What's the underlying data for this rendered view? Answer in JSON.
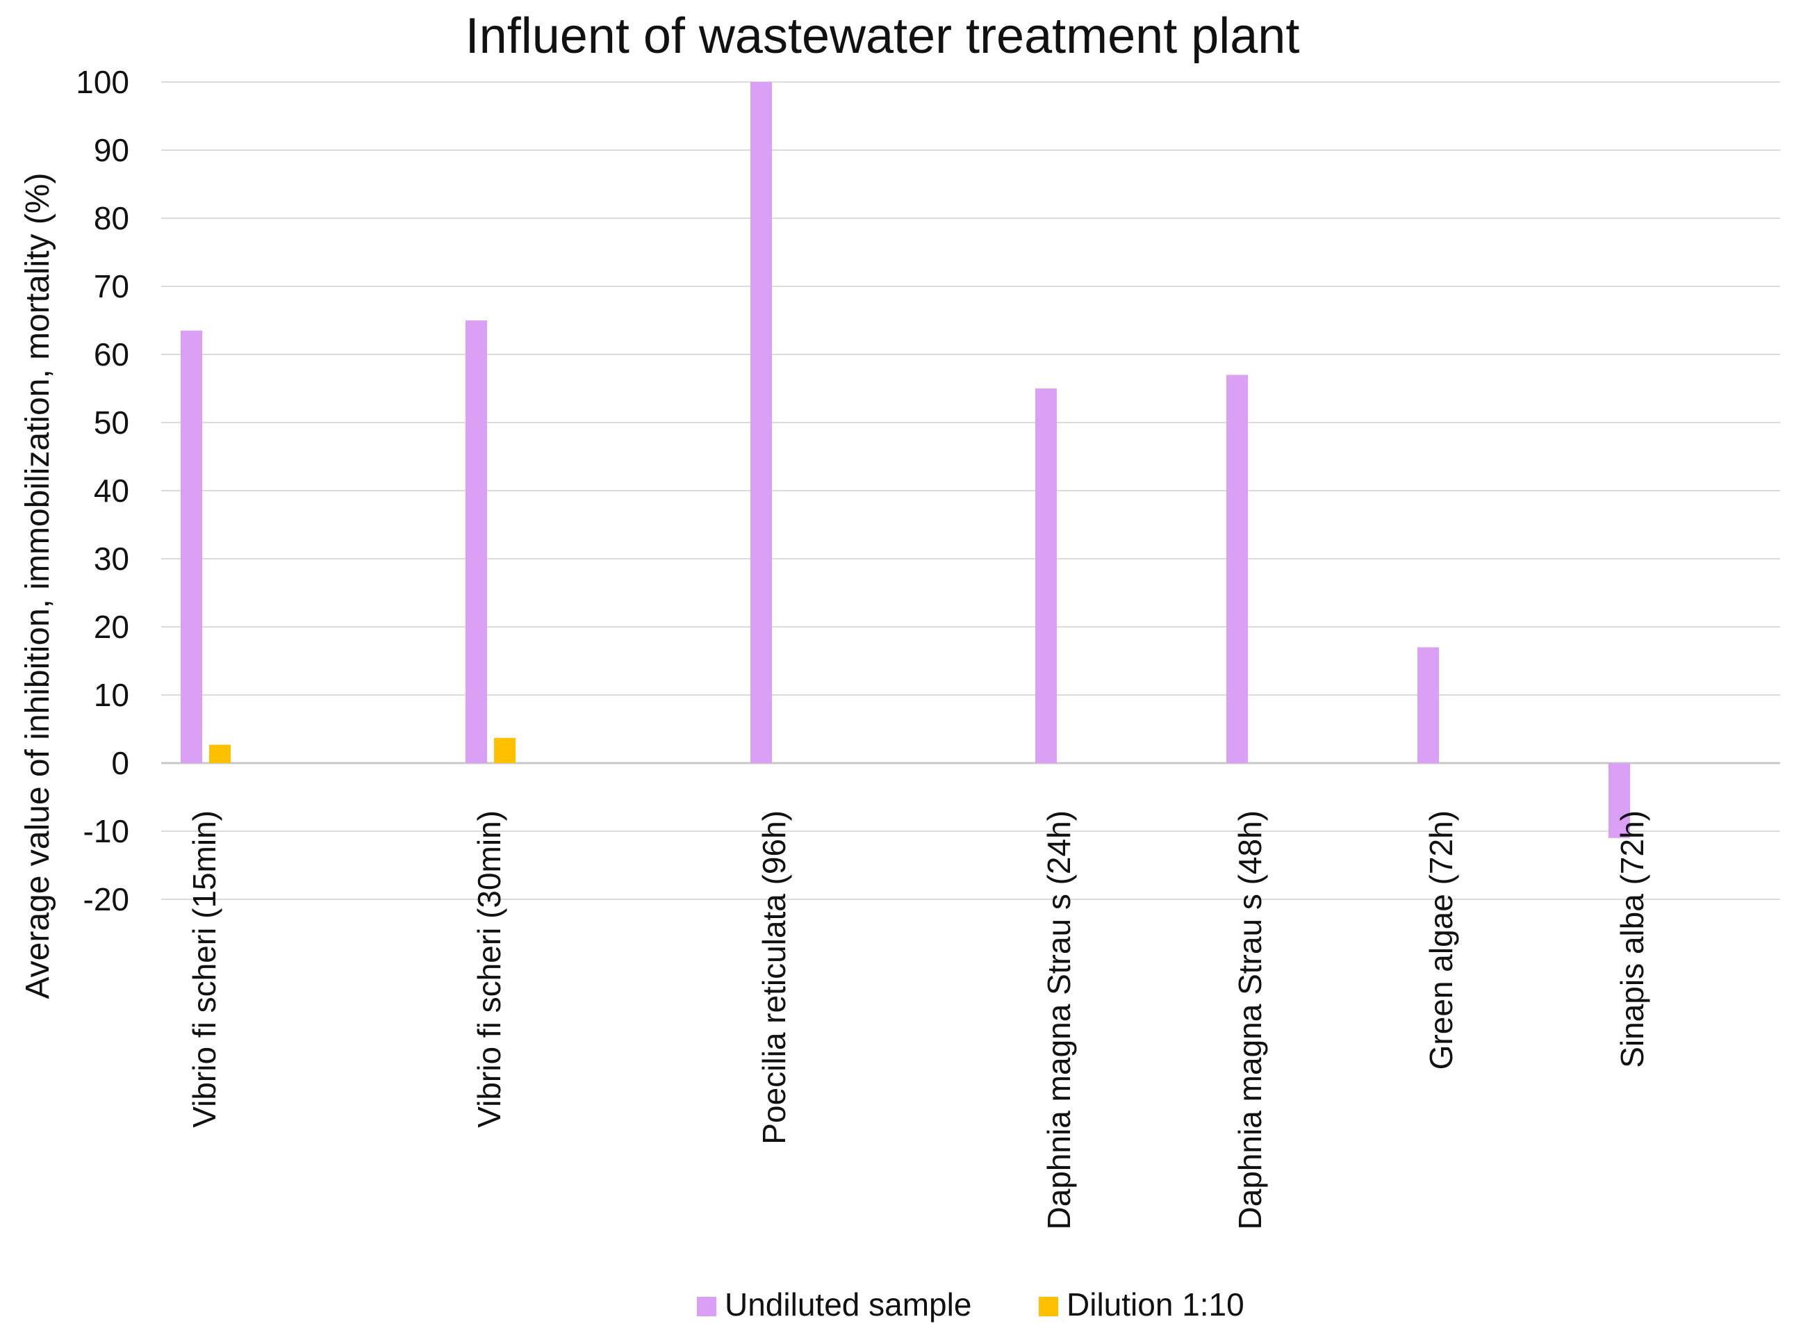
{
  "chart_data": {
    "type": "bar",
    "title": "Influent of wastewater treatment plant",
    "xlabel": "",
    "ylabel": "Average value of inhibition, immobilization, mortality (%)",
    "ylim": [
      -20,
      100
    ],
    "yticks": [
      100,
      90,
      80,
      70,
      60,
      50,
      40,
      30,
      20,
      10,
      0,
      -10,
      -20
    ],
    "grid": true,
    "legend_position": "bottom",
    "categories": [
      "Vibrio fi scheri (15min)",
      "Vibrio fi scheri (30min)",
      "Poecilia reticulata  (96h)",
      "Daphnia magna Strau s  (24h)",
      "Daphnia magna Strau s  (48h)",
      "Green algae  (72h)",
      "Sinapis alba  (72h)"
    ],
    "series": [
      {
        "name": "Undiluted sample",
        "color": "#d9a0f5",
        "values": [
          63.5,
          65,
          100,
          55,
          57,
          17,
          -11
        ]
      },
      {
        "name": "Dilution 1:10",
        "color": "#ffc000",
        "values": [
          2.7,
          3.7,
          null,
          null,
          null,
          null,
          null
        ]
      }
    ]
  }
}
